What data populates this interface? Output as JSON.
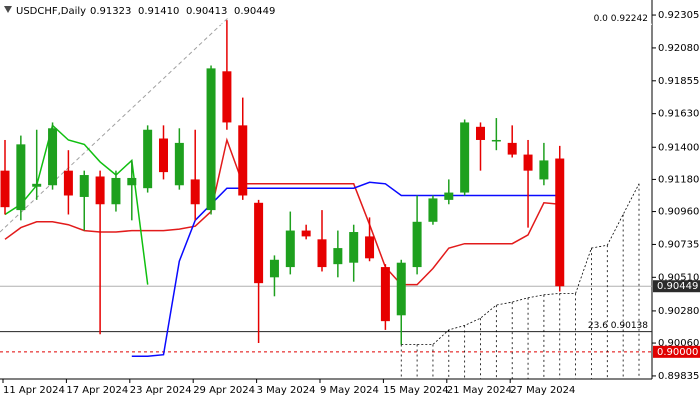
{
  "chart_data": {
    "type": "candlestick",
    "title": "USDCHF,Daily",
    "ohlc_labels": [
      "0.91323",
      "0.91410",
      "0.90413",
      "0.90449"
    ],
    "categories": [
      "11 Apr 2024",
      null,
      null,
      null,
      "17 Apr 2024",
      null,
      null,
      null,
      "23 Apr 2024",
      null,
      null,
      null,
      "29 Apr 2024",
      null,
      null,
      null,
      "3 May 2024",
      null,
      null,
      null,
      "9 May 2024",
      null,
      null,
      null,
      "15 May 2024",
      null,
      null,
      null,
      "21 May 2024",
      null,
      null,
      null,
      "27 May 2024",
      null,
      null,
      null,
      null,
      null,
      null,
      null,
      null
    ],
    "open": [
      0.9124,
      0.9097,
      0.9113,
      0.9114,
      0.9124,
      0.9106,
      0.912,
      0.9101,
      0.9114,
      0.9112,
      0.9146,
      0.9114,
      0.9118,
      0.9097,
      0.9192,
      0.9155,
      0.9102,
      0.9051,
      0.9058,
      0.9083,
      0.9077,
      0.906,
      0.9061,
      0.9079,
      0.9058,
      0.9025,
      0.9058,
      0.9089,
      0.9104,
      0.9109,
      0.9154,
      0.9144,
      0.9143,
      0.9135,
      0.9118,
      0.91323,
      null,
      null,
      null,
      null,
      null
    ],
    "high": [
      0.9145,
      0.9148,
      0.9152,
      0.9157,
      0.9138,
      0.9124,
      0.9124,
      0.9124,
      0.9131,
      0.9155,
      0.9155,
      0.9153,
      0.9152,
      0.9196,
      0.9227,
      0.9174,
      0.9104,
      0.9066,
      0.9096,
      0.9087,
      0.9097,
      0.9083,
      0.9087,
      0.9092,
      0.906,
      0.9063,
      0.9107,
      0.9107,
      0.9118,
      0.9159,
      0.9157,
      0.916,
      0.9155,
      0.9145,
      0.9143,
      0.9141,
      null,
      null,
      null,
      null,
      null
    ],
    "low": [
      0.9094,
      0.909,
      0.9104,
      0.9111,
      0.9094,
      0.9083,
      0.9012,
      0.9096,
      0.909,
      0.9109,
      0.9118,
      0.9111,
      0.909,
      0.9094,
      0.9152,
      0.9104,
      0.9006,
      0.9038,
      0.9053,
      0.9077,
      0.9055,
      0.9051,
      0.9048,
      0.9062,
      0.9015,
      0.9005,
      0.9053,
      0.9087,
      0.9101,
      0.9107,
      0.9124,
      0.9138,
      0.9133,
      0.9085,
      0.9114,
      0.90413,
      null,
      null,
      null,
      null,
      null
    ],
    "close": [
      0.9099,
      0.9142,
      0.9115,
      0.9153,
      0.9107,
      0.9121,
      0.9101,
      0.9119,
      0.9119,
      0.9152,
      0.9123,
      0.9143,
      0.9101,
      0.9194,
      0.9157,
      0.9107,
      0.9047,
      0.9063,
      0.9083,
      0.9079,
      0.9058,
      0.9071,
      0.9082,
      0.9064,
      0.9021,
      0.9061,
      0.9089,
      0.9105,
      0.9109,
      0.9157,
      0.9145,
      0.9145,
      0.9135,
      0.9124,
      0.9131,
      0.90449,
      null,
      null,
      null,
      null,
      null
    ],
    "up_color": "#1ea01e",
    "down_color": "#e60000",
    "lines": [
      {
        "color": "#e21b1b",
        "values": [
          0.9077,
          0.9085,
          0.9089,
          0.9089,
          0.9087,
          0.9083,
          0.9082,
          0.9082,
          0.9083,
          0.9083,
          0.9083,
          0.9084,
          0.9086,
          0.9096,
          0.9145,
          0.9115,
          0.9115,
          0.9115,
          0.9115,
          0.9115,
          0.9115,
          0.9115,
          0.9115,
          0.9087,
          0.9058,
          0.9046,
          0.9046,
          0.9057,
          0.9071,
          0.9074,
          0.9074,
          0.9074,
          0.9074,
          0.908,
          0.9102,
          0.9101,
          null,
          null,
          null,
          null,
          null
        ]
      },
      {
        "color": "#0a0aff",
        "values": [
          null,
          null,
          null,
          null,
          null,
          null,
          null,
          null,
          0.8997,
          0.8997,
          0.8998,
          0.9062,
          0.909,
          0.9101,
          0.9112,
          0.9112,
          0.9112,
          0.9112,
          0.9112,
          0.9112,
          0.9112,
          0.9112,
          0.9112,
          0.9116,
          0.9115,
          0.9107,
          0.9107,
          0.9107,
          0.9107,
          0.9107,
          0.9107,
          0.9107,
          0.9107,
          0.9107,
          0.9107,
          0.9107,
          null,
          null,
          null,
          null,
          null
        ]
      },
      {
        "color": "#10c010",
        "values": [
          0.9094,
          0.9101,
          0.9114,
          0.9155,
          0.9145,
          0.9142,
          0.913,
          0.9121,
          0.9131,
          0.9046,
          null,
          null,
          null,
          null,
          null,
          null,
          null,
          null,
          null,
          null,
          null,
          null,
          null,
          null,
          null,
          null,
          null,
          null,
          null,
          null,
          null,
          null,
          null,
          null,
          null,
          null,
          null,
          null,
          null,
          null,
          null
        ]
      }
    ],
    "cloud": {
      "color": "#000000",
      "span_a": [
        null,
        null,
        null,
        null,
        null,
        null,
        null,
        null,
        null,
        null,
        null,
        null,
        null,
        null,
        null,
        null,
        null,
        null,
        null,
        null,
        null,
        null,
        null,
        null,
        null,
        0.9005,
        0.9005,
        0.9005,
        0.9015,
        0.9018,
        0.9023,
        0.9032,
        0.9034,
        0.9037,
        0.9039,
        0.904,
        0.904,
        0.9071,
        0.9073,
        0.9094,
        0.9115
      ],
      "span_b": [
        null,
        null,
        null,
        null,
        null,
        null,
        null,
        null,
        null,
        null,
        null,
        null,
        null,
        null,
        null,
        null,
        null,
        null,
        null,
        null,
        null,
        null,
        null,
        null,
        null,
        0.8976,
        0.8976,
        0.8976,
        0.8976,
        0.8976,
        0.8976,
        0.8976,
        0.8976,
        0.8976,
        0.8976,
        0.8976,
        0.8976,
        0.8976,
        0.8976,
        0.8976,
        0.8976
      ]
    },
    "levels": [
      {
        "label": "0.0 0.92242",
        "value": 0.92242
      },
      {
        "label": "23.6 0.90138",
        "value": 0.90138
      }
    ],
    "price_tags": [
      {
        "label": "0.90449",
        "value": 0.90449,
        "color": "#2b2b2b",
        "line_color": "#b0b0b0",
        "dashed": false
      },
      {
        "label": "0.90000",
        "value": 0.9,
        "color": "#e00000",
        "line_color": "#e00000",
        "dashed": true
      }
    ],
    "ylim": [
      0.89814,
      0.92408
    ],
    "yticks": [
      0.92305,
      {
        "value": 0.9208,
        "label": "0.92080"
      },
      0.91855,
      {
        "value": 0.9163,
        "label": "0.91630"
      },
      {
        "value": 0.914,
        "label": "0.91400"
      },
      {
        "value": 0.9118,
        "label": "0.91180"
      },
      {
        "value": 0.9096,
        "label": "0.90960"
      },
      0.90735,
      {
        "value": 0.9051,
        "label": "0.90510"
      },
      {
        "value": 0.9028,
        "label": "0.90280"
      },
      {
        "value": 0.9006,
        "label": "0.90060"
      },
      0.89835
    ]
  }
}
